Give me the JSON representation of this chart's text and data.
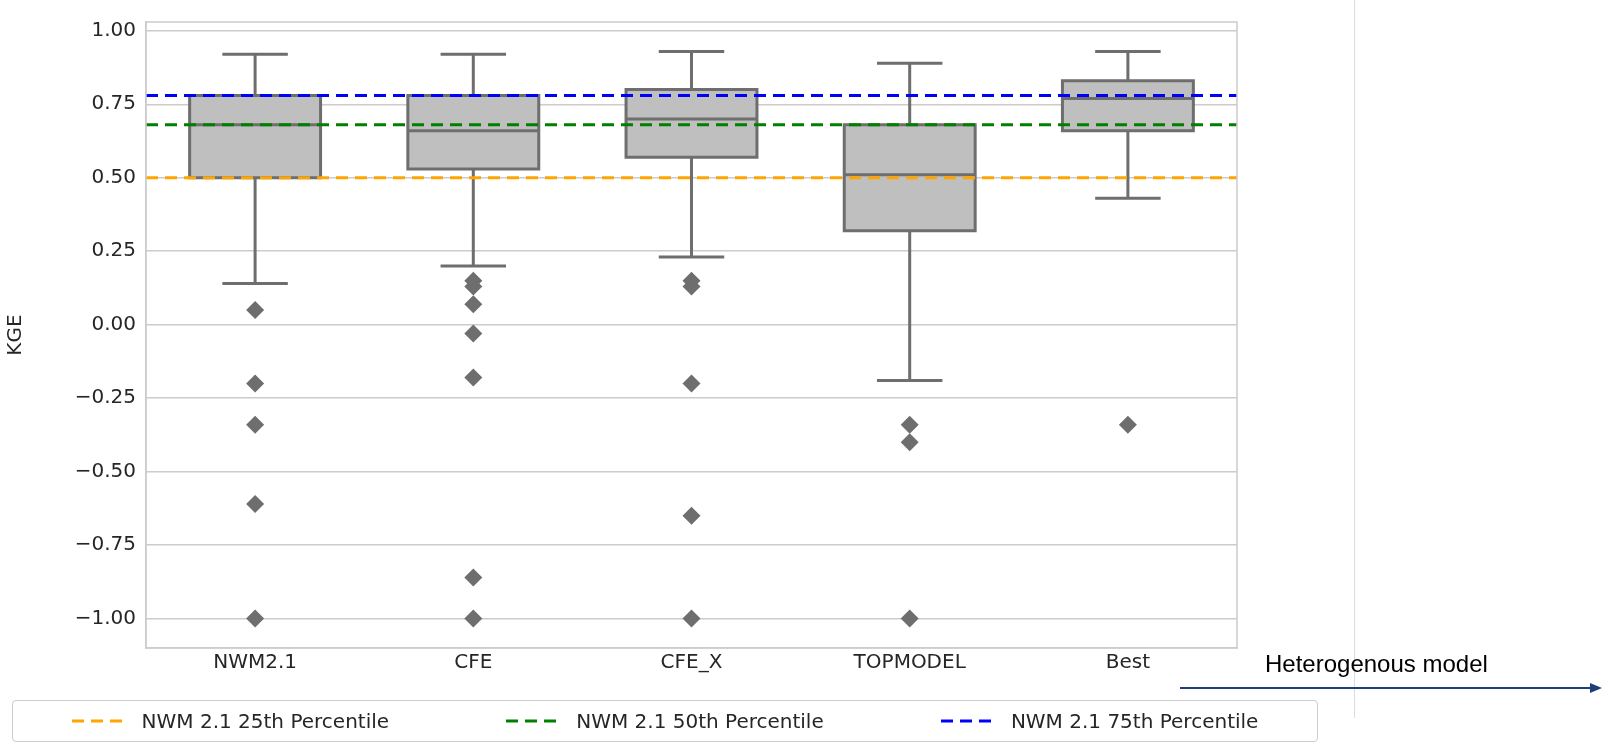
{
  "chart_data": {
    "type": "box",
    "ylabel": "KGE",
    "categories": [
      "NWM2.1",
      "CFE",
      "CFE_X",
      "TOPMODEL",
      "Best"
    ],
    "boxes": [
      {
        "low": 0.14,
        "q1": 0.5,
        "median": 0.68,
        "q3": 0.78,
        "high": 0.92,
        "outliers": [
          0.05,
          -0.2,
          -0.34,
          -0.61,
          -1.0
        ]
      },
      {
        "low": 0.2,
        "q1": 0.53,
        "median": 0.66,
        "q3": 0.78,
        "high": 0.92,
        "outliers": [
          0.15,
          0.13,
          0.07,
          -0.03,
          -0.18,
          -0.86,
          -1.0
        ]
      },
      {
        "low": 0.23,
        "q1": 0.57,
        "median": 0.7,
        "q3": 0.8,
        "high": 0.93,
        "outliers": [
          0.15,
          0.13,
          -0.2,
          -0.65,
          -1.0
        ]
      },
      {
        "low": -0.19,
        "q1": 0.32,
        "median": 0.51,
        "q3": 0.68,
        "high": 0.89,
        "outliers": [
          -0.34,
          -0.4,
          -1.0
        ]
      },
      {
        "low": 0.43,
        "q1": 0.66,
        "median": 0.77,
        "q3": 0.83,
        "high": 0.93,
        "outliers": [
          -0.34
        ]
      }
    ],
    "color": "#bfbfbf",
    "marker": "diamond",
    "ylim": [
      -1.1,
      1.03
    ],
    "yticks": [
      {
        "value": -1,
        "label": "−1.00"
      },
      {
        "value": -0.75,
        "label": "−0.75"
      },
      {
        "value": -0.5,
        "label": "−0.50"
      },
      {
        "value": -0.25,
        "label": "−0.25"
      },
      {
        "value": 0,
        "label": "0.00"
      },
      {
        "value": 0.25,
        "label": "0.25"
      },
      {
        "value": 0.5,
        "label": "0.50"
      },
      {
        "value": 0.75,
        "label": "0.75"
      },
      {
        "value": 1,
        "label": "1.00"
      }
    ],
    "grid": "y",
    "legend": "bottom",
    "ref_lines": [
      {
        "axis": "y",
        "value": 0.5,
        "label": "NWM 2.1 25th Percentile",
        "color": "#ffa500",
        "line_style": "dashed"
      },
      {
        "axis": "y",
        "value": 0.68,
        "label": "NWM 2.1 50th Percentile",
        "color": "#008000",
        "line_style": "dashed"
      },
      {
        "axis": "y",
        "value": 0.78,
        "label": "NWM 2.1 75th Percentile",
        "color": "#0000ff",
        "line_style": "dashed"
      }
    ],
    "annotations": [
      "Heterogenous model"
    ]
  }
}
